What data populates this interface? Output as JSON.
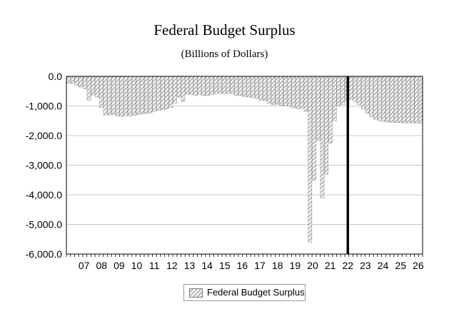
{
  "chart_data": {
    "type": "bar",
    "title": "Federal Budget Surplus",
    "subtitle": "(Billions of Dollars)",
    "xlabel": "",
    "ylabel": "",
    "ylim": [
      -6000,
      0
    ],
    "yticks": [
      0,
      -1000,
      -2000,
      -3000,
      -4000,
      -5000,
      -6000
    ],
    "ytick_labels": [
      "0.0",
      "-1,000.0",
      "-2,000.0",
      "-3,000.0",
      "-4,000.0",
      "-5,000.0",
      "-6,000.0"
    ],
    "xtick_labels": [
      "07",
      "08",
      "09",
      "10",
      "11",
      "12",
      "13",
      "14",
      "15",
      "16",
      "17",
      "18",
      "19",
      "20",
      "21",
      "22",
      "23",
      "24",
      "25",
      "26"
    ],
    "x_start_year": 2006.5,
    "x_end_year": 2026.75,
    "frequency": "quarterly",
    "grid": true,
    "legend": "bottom-center",
    "forecast_marker_year": 2022.5,
    "series": [
      {
        "name": "Federal Budget Surplus",
        "fill": "hatched gray",
        "values": [
          -230,
          -240,
          -300,
          -360,
          -420,
          -800,
          -630,
          -700,
          -1050,
          -1300,
          -1300,
          -1280,
          -1340,
          -1350,
          -1330,
          -1330,
          -1320,
          -1290,
          -1270,
          -1250,
          -1230,
          -1180,
          -1150,
          -1130,
          -1100,
          -1050,
          -900,
          -700,
          -850,
          -600,
          -620,
          -650,
          -620,
          -650,
          -640,
          -620,
          -580,
          -560,
          -600,
          -570,
          -590,
          -640,
          -650,
          -680,
          -700,
          -720,
          -740,
          -800,
          -820,
          -900,
          -950,
          -940,
          -980,
          -1000,
          -1020,
          -1050,
          -1090,
          -1080,
          -1180,
          -5600,
          -3500,
          -2150,
          -4100,
          -3300,
          -2250,
          -1500,
          -1000,
          -950,
          -850,
          -780,
          -850,
          -950,
          -1100,
          -1250,
          -1370,
          -1450,
          -1500,
          -1520,
          -1540,
          -1550,
          -1560,
          -1560,
          -1570,
          -1570,
          -1570,
          -1575,
          -1580
        ]
      }
    ]
  }
}
